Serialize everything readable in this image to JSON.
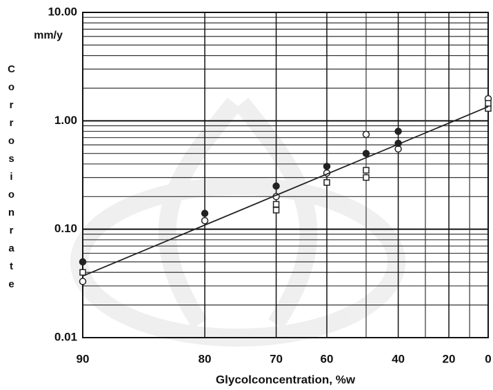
{
  "chart_data": {
    "type": "scatter",
    "x_label": "Glycolconcentration, %w",
    "y_label": "Corrosionrate",
    "y_unit": "mm/y",
    "xscale": "log-complement",
    "xlim": [
      90,
      0
    ],
    "xticks": [
      90,
      80,
      70,
      60,
      40,
      20,
      0
    ],
    "xminor": [
      50,
      30,
      10
    ],
    "ylog": true,
    "ylim": [
      0.01,
      10
    ],
    "yticks": [
      {
        "value": 10,
        "label": "10.00"
      },
      {
        "value": 1,
        "label": "1.00"
      },
      {
        "value": 0.1,
        "label": "0.10"
      },
      {
        "value": 0.01,
        "label": "0.01"
      }
    ],
    "grid": true,
    "series": [
      {
        "marker": "open-circle",
        "color": "#222",
        "x": [
          90,
          80,
          70,
          60,
          50,
          40,
          0
        ],
        "values": [
          0.033,
          0.12,
          0.2,
          0.33,
          0.75,
          0.55,
          1.6
        ]
      },
      {
        "marker": "filled-circle",
        "color": "#222",
        "x": [
          90,
          80,
          70,
          60,
          50,
          40,
          40
        ],
        "values": [
          0.05,
          0.14,
          0.25,
          0.38,
          0.5,
          0.8,
          0.62
        ]
      },
      {
        "marker": "open-square",
        "color": "#222",
        "x": [
          90,
          70,
          70,
          60,
          50,
          50,
          0,
          0
        ],
        "values": [
          0.04,
          0.17,
          0.15,
          0.27,
          0.3,
          0.35,
          1.3,
          1.45
        ]
      },
      {
        "marker": "line",
        "color": "#222",
        "x": [
          90,
          0
        ],
        "values": [
          0.037,
          1.35
        ]
      }
    ]
  }
}
